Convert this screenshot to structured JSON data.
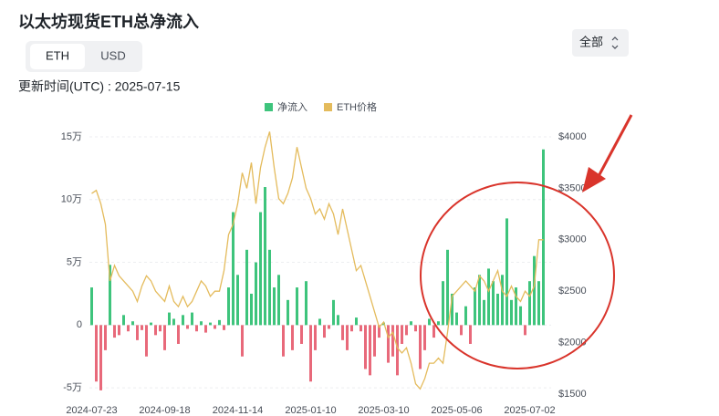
{
  "header": {
    "title": "以太坊现货ETH总净流入",
    "tabs": [
      "ETH",
      "USD"
    ],
    "update_time": "更新时间(UTC) : 2025-07-15",
    "range_select": "全部"
  },
  "chart_data": {
    "type": "bar",
    "categories": [
      "2024-07-23",
      null,
      null,
      null,
      null,
      null,
      null,
      null,
      null,
      null,
      null,
      null,
      null,
      null,
      null,
      null,
      "2024-09-18",
      null,
      null,
      null,
      null,
      null,
      null,
      null,
      null,
      null,
      null,
      null,
      null,
      null,
      null,
      null,
      "2024-11-14",
      null,
      null,
      null,
      null,
      null,
      null,
      null,
      null,
      null,
      null,
      null,
      null,
      null,
      null,
      null,
      "2025-01-10",
      null,
      null,
      null,
      null,
      null,
      null,
      null,
      null,
      null,
      null,
      null,
      null,
      null,
      null,
      null,
      "2025-03-10",
      null,
      null,
      null,
      null,
      null,
      null,
      null,
      null,
      null,
      null,
      null,
      null,
      null,
      null,
      null,
      "2025-05-06",
      null,
      null,
      null,
      null,
      null,
      null,
      null,
      null,
      null,
      null,
      null,
      null,
      null,
      null,
      null,
      "2025-07-02",
      null,
      null,
      null
    ],
    "series": [
      {
        "name": "净流入",
        "type": "bar",
        "color": "#3ec47c",
        "negative_color": "#e8697a",
        "values": [
          30000,
          -45000,
          -52000,
          -20000,
          48000,
          -10000,
          -8000,
          8000,
          -5000,
          3000,
          -12000,
          -4000,
          -25000,
          2000,
          -8000,
          -5000,
          -20000,
          10000,
          5000,
          -15000,
          8000,
          -3000,
          10000,
          -5000,
          3000,
          -6000,
          2000,
          -3000,
          4000,
          -4000,
          30000,
          90000,
          40000,
          -25000,
          60000,
          25000,
          50000,
          90000,
          110000,
          60000,
          30000,
          40000,
          -25000,
          20000,
          -20000,
          30000,
          -15000,
          35000,
          -45000,
          -20000,
          5000,
          -10000,
          -3000,
          20000,
          8000,
          -12000,
          -20000,
          -5000,
          6000,
          -5000,
          -35000,
          -40000,
          -25000,
          -10000,
          2000,
          -30000,
          -25000,
          -40000,
          -15000,
          -8000,
          3000,
          -5000,
          -35000,
          -20000,
          5000,
          -10000,
          3000,
          35000,
          60000,
          25000,
          10000,
          -8000,
          15000,
          -15000,
          30000,
          40000,
          20000,
          45000,
          35000,
          25000,
          40000,
          85000,
          20000,
          30000,
          15000,
          -8000,
          35000,
          55000,
          35000,
          140000
        ]
      },
      {
        "name": "ETH价格",
        "type": "line",
        "axis": "y2",
        "color": "#e4bb5c",
        "values": [
          3450,
          3480,
          3350,
          3150,
          2600,
          2750,
          2650,
          2600,
          2550,
          2500,
          2400,
          2550,
          2650,
          2600,
          2500,
          2450,
          2400,
          2550,
          2400,
          2350,
          2450,
          2350,
          2400,
          2500,
          2600,
          2550,
          2450,
          2500,
          2500,
          2700,
          3050,
          3150,
          3350,
          3650,
          3500,
          3750,
          3350,
          3700,
          3900,
          4050,
          3700,
          3400,
          3350,
          3450,
          3600,
          3900,
          3700,
          3500,
          3400,
          3250,
          3300,
          3200,
          3350,
          3250,
          3050,
          3300,
          3100,
          2900,
          2700,
          2750,
          2600,
          2450,
          2300,
          2150,
          2200,
          2050,
          2100,
          1950,
          1900,
          1950,
          1800,
          1600,
          1550,
          1650,
          1800,
          1800,
          1850,
          1800,
          2100,
          2450,
          2500,
          2550,
          2600,
          2550,
          2500,
          2650,
          2600,
          2500,
          2600,
          2700,
          2500,
          2450,
          2550,
          2450,
          2400,
          2500,
          2450,
          2550,
          3000,
          3000
        ]
      }
    ],
    "ylim": [
      -55000,
      150000
    ],
    "yticks": [
      {
        "value": -50000,
        "label": "-5万"
      },
      0,
      {
        "value": 50000,
        "label": "5万"
      },
      {
        "value": 100000,
        "label": "10万"
      },
      {
        "value": 150000,
        "label": "15万"
      }
    ],
    "y2lim": [
      1500,
      4000
    ],
    "y2ticks": [
      {
        "value": 1500,
        "label": "$1500"
      },
      {
        "value": 2000,
        "label": "$2000"
      },
      {
        "value": 2500,
        "label": "$2500"
      },
      {
        "value": 3000,
        "label": "$3000"
      },
      {
        "value": 3500,
        "label": "$3500"
      },
      {
        "value": 4000,
        "label": "$4000"
      }
    ],
    "grid": true,
    "legend": "top"
  }
}
